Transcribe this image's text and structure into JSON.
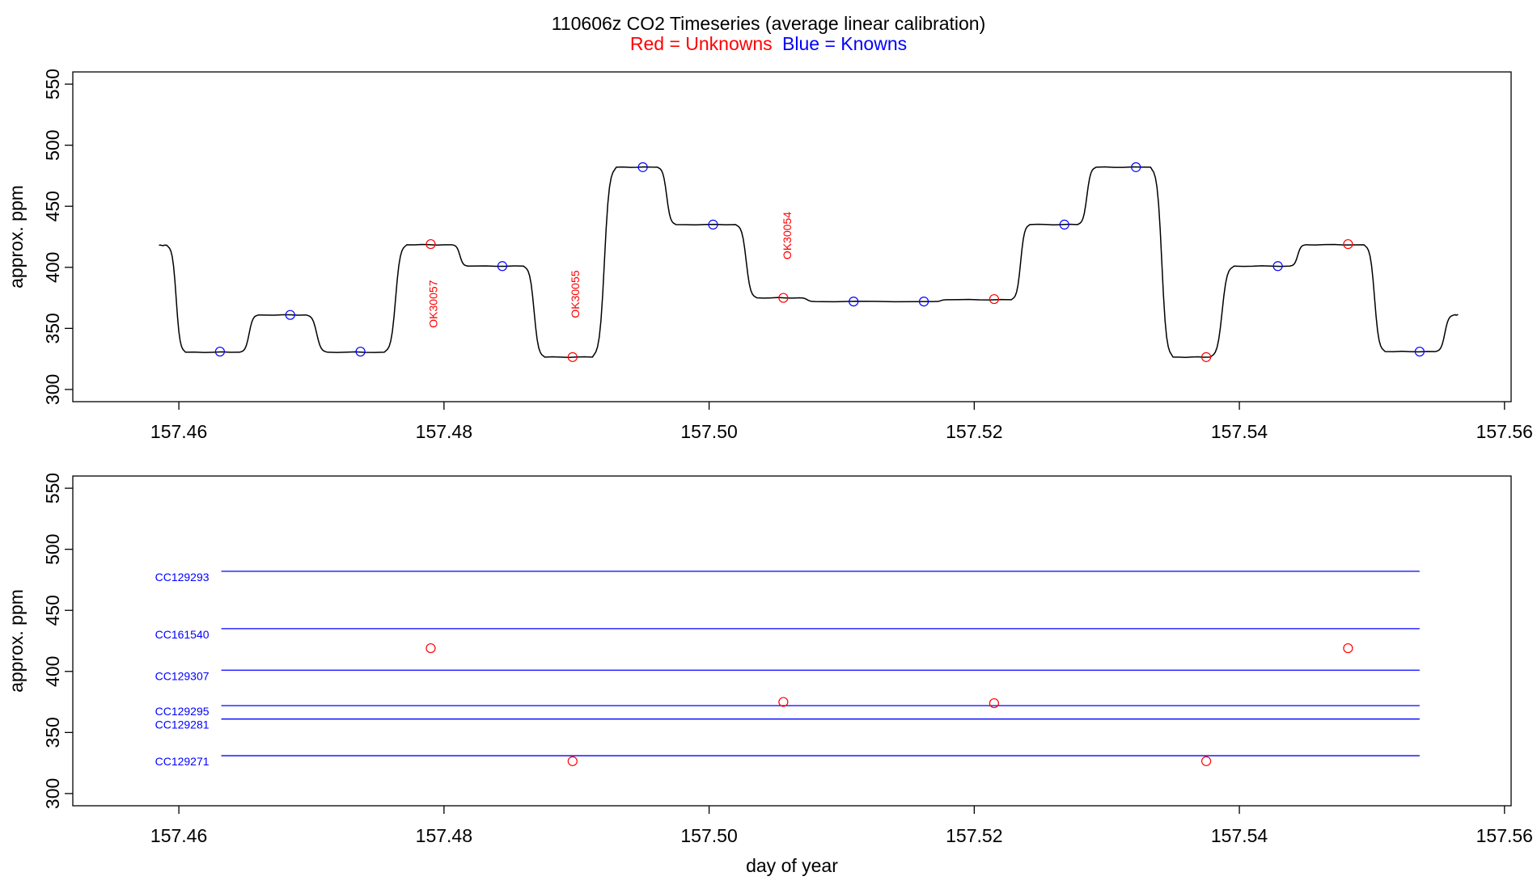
{
  "title": {
    "main": "110606z    CO2 Timeseries (average linear calibration)",
    "legend_red": "Red = Unknowns",
    "legend_blue": "Blue = Knowns"
  },
  "colors": {
    "unknowns": "#ff0000",
    "knowns": "#0000ff",
    "trace": "#000000"
  },
  "chart_data": [
    {
      "type": "line",
      "panel": "top",
      "xlabel": "",
      "ylabel": "approx. ppm",
      "xlim": [
        157.452,
        157.5605
      ],
      "ylim": [
        290,
        560
      ],
      "xticks": [
        {
          "v": 157.46,
          "label": "157.46"
        },
        {
          "v": 157.48,
          "label": "157.48"
        },
        {
          "v": 157.5,
          "label": "157.50"
        },
        {
          "v": 157.52,
          "label": "157.52"
        },
        {
          "v": 157.54,
          "label": "157.54"
        },
        {
          "v": 157.56,
          "label": "157.56"
        }
      ],
      "yticks": [
        {
          "v": 300,
          "label": "300"
        },
        {
          "v": 350,
          "label": "350"
        },
        {
          "v": 400,
          "label": "400"
        },
        {
          "v": 450,
          "label": "450"
        },
        {
          "v": 500,
          "label": "500"
        },
        {
          "v": 550,
          "label": "550"
        }
      ],
      "trace_levels": [
        {
          "start": 157.4585,
          "end": 157.4591,
          "y": 418
        },
        {
          "start": 157.4605,
          "end": 157.4646,
          "y": 330.5
        },
        {
          "start": 157.466,
          "end": 157.4696,
          "y": 361
        },
        {
          "start": 157.4712,
          "end": 157.4755,
          "y": 330.5
        },
        {
          "start": 157.4772,
          "end": 157.4806,
          "y": 418.5
        },
        {
          "start": 157.4818,
          "end": 157.486,
          "y": 401
        },
        {
          "start": 157.4876,
          "end": 157.4912,
          "y": 326.5
        },
        {
          "start": 157.493,
          "end": 157.4961,
          "y": 482
        },
        {
          "start": 157.4975,
          "end": 157.502,
          "y": 435
        },
        {
          "start": 157.5036,
          "end": 157.5068,
          "y": 375
        },
        {
          "start": 157.508,
          "end": 157.517,
          "y": 372
        },
        {
          "start": 157.518,
          "end": 157.5228,
          "y": 373.5
        },
        {
          "start": 157.5242,
          "end": 157.5278,
          "y": 435
        },
        {
          "start": 157.5292,
          "end": 157.5333,
          "y": 482
        },
        {
          "start": 157.535,
          "end": 157.5378,
          "y": 326.5
        },
        {
          "start": 157.5396,
          "end": 157.5438,
          "y": 401
        },
        {
          "start": 157.545,
          "end": 157.5494,
          "y": 418.5
        },
        {
          "start": 157.551,
          "end": 157.5548,
          "y": 331
        },
        {
          "start": 157.5562,
          "end": 157.5565,
          "y": 361
        }
      ],
      "points": [
        {
          "x": 157.4631,
          "y": 331,
          "kind": "known"
        },
        {
          "x": 157.4684,
          "y": 361,
          "kind": "known"
        },
        {
          "x": 157.4737,
          "y": 331,
          "kind": "known"
        },
        {
          "x": 157.479,
          "y": 419,
          "kind": "unknown"
        },
        {
          "x": 157.4844,
          "y": 401,
          "kind": "known"
        },
        {
          "x": 157.4897,
          "y": 326.5,
          "kind": "unknown"
        },
        {
          "x": 157.495,
          "y": 482,
          "kind": "known"
        },
        {
          "x": 157.5003,
          "y": 435,
          "kind": "known"
        },
        {
          "x": 157.5056,
          "y": 375,
          "kind": "unknown"
        },
        {
          "x": 157.5109,
          "y": 372,
          "kind": "known"
        },
        {
          "x": 157.5162,
          "y": 372,
          "kind": "known"
        },
        {
          "x": 157.5215,
          "y": 374,
          "kind": "unknown"
        },
        {
          "x": 157.5268,
          "y": 435,
          "kind": "known"
        },
        {
          "x": 157.5322,
          "y": 482,
          "kind": "known"
        },
        {
          "x": 157.5375,
          "y": 326.5,
          "kind": "unknown"
        },
        {
          "x": 157.5429,
          "y": 401,
          "kind": "known"
        },
        {
          "x": 157.5482,
          "y": 419,
          "kind": "unknown"
        },
        {
          "x": 157.5536,
          "y": 331,
          "kind": "known"
        }
      ],
      "annotations": [
        {
          "text": "OK30057",
          "x": 157.4795,
          "y": 370
        },
        {
          "text": "OK30055",
          "x": 157.4902,
          "y": 378
        },
        {
          "text": "OK30054",
          "x": 157.5062,
          "y": 426
        }
      ]
    },
    {
      "type": "scatter",
      "panel": "bottom",
      "xlabel": "day of year",
      "ylabel": "approx. ppm",
      "xlim": [
        157.452,
        157.5605
      ],
      "ylim": [
        290,
        560
      ],
      "xticks": [
        {
          "v": 157.46,
          "label": "157.46"
        },
        {
          "v": 157.48,
          "label": "157.48"
        },
        {
          "v": 157.5,
          "label": "157.50"
        },
        {
          "v": 157.52,
          "label": "157.52"
        },
        {
          "v": 157.54,
          "label": "157.54"
        },
        {
          "v": 157.56,
          "label": "157.56"
        }
      ],
      "yticks": [
        {
          "v": 300,
          "label": "300"
        },
        {
          "v": 350,
          "label": "350"
        },
        {
          "v": 400,
          "label": "400"
        },
        {
          "v": 450,
          "label": "450"
        },
        {
          "v": 500,
          "label": "500"
        },
        {
          "v": 550,
          "label": "550"
        }
      ],
      "reference_lines": [
        {
          "name": "CC129293",
          "y": 482,
          "x_start": 157.4632,
          "x_end": 157.5536
        },
        {
          "name": "CC161540",
          "y": 435,
          "x_start": 157.4632,
          "x_end": 157.5536
        },
        {
          "name": "CC129307",
          "y": 401,
          "x_start": 157.4632,
          "x_end": 157.5536
        },
        {
          "name": "CC129295",
          "y": 372,
          "x_start": 157.4632,
          "x_end": 157.5536
        },
        {
          "name": "CC129281",
          "y": 361,
          "x_start": 157.4632,
          "x_end": 157.5536
        },
        {
          "name": "CC129271",
          "y": 331,
          "x_start": 157.4632,
          "x_end": 157.5536
        }
      ],
      "points": [
        {
          "x": 157.479,
          "y": 419,
          "kind": "unknown"
        },
        {
          "x": 157.4897,
          "y": 326.5,
          "kind": "unknown"
        },
        {
          "x": 157.5056,
          "y": 375,
          "kind": "unknown"
        },
        {
          "x": 157.5215,
          "y": 374,
          "kind": "unknown"
        },
        {
          "x": 157.5375,
          "y": 326.5,
          "kind": "unknown"
        },
        {
          "x": 157.5482,
          "y": 419,
          "kind": "unknown"
        }
      ]
    }
  ]
}
